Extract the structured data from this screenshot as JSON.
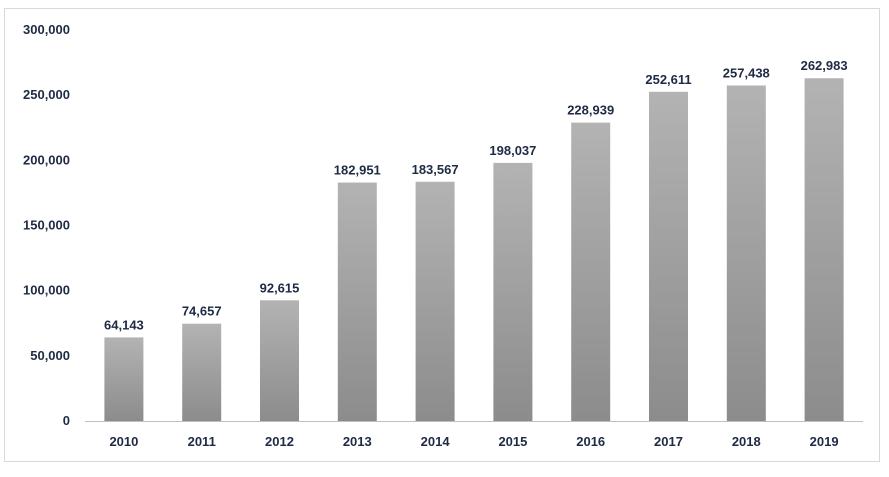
{
  "chart_data": {
    "type": "bar",
    "title": "",
    "xlabel": "",
    "ylabel": "",
    "categories": [
      "2010",
      "2011",
      "2012",
      "2013",
      "2014",
      "2015",
      "2016",
      "2017",
      "2018",
      "2019"
    ],
    "values": [
      64143,
      74657,
      92615,
      182951,
      183567,
      198037,
      228939,
      252611,
      257438,
      262983
    ],
    "value_labels": [
      "64,143",
      "74,657",
      "92,615",
      "182,951",
      "183,567",
      "198,037",
      "228,939",
      "252,611",
      "257,438",
      "262,983"
    ],
    "ylim": [
      0,
      300000
    ],
    "yticks": [
      0,
      50000,
      100000,
      150000,
      200000,
      250000,
      300000
    ],
    "ytick_labels": [
      "0",
      "50,000",
      "100,000",
      "150,000",
      "200,000",
      "250,000",
      "300,000"
    ],
    "grid": false,
    "legend": "none",
    "bar_color_top": "#b3b3b3",
    "bar_color_bottom": "#8c8c8c",
    "text_color": "#1f2a44"
  }
}
